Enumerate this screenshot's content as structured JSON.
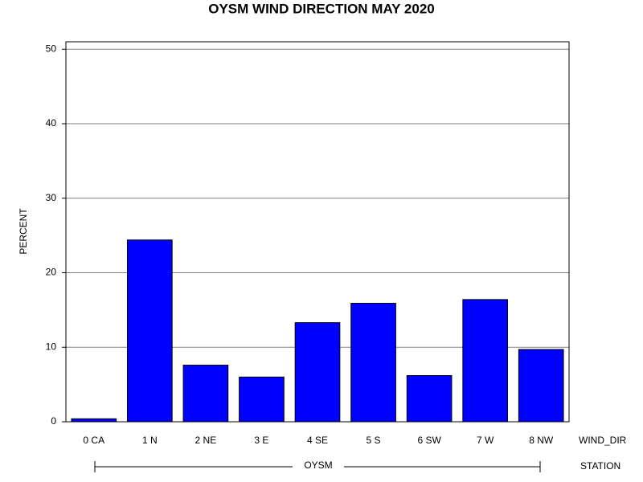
{
  "chart_data": {
    "type": "bar",
    "title": "OYSM WIND DIRECTION MAY 2020",
    "y_label": "PERCENT",
    "x_label": "WIND_DIR",
    "group_label": "STATION",
    "group": "OYSM",
    "categories": [
      "0 CA",
      "1 N",
      "2 NE",
      "3 E",
      "4 SE",
      "5 S",
      "6 SW",
      "7 W",
      "8 NW"
    ],
    "values": [
      0.4,
      24.4,
      7.6,
      6.0,
      13.3,
      15.9,
      6.2,
      16.4,
      9.7
    ],
    "color": "#0000ff",
    "ylim": [
      0,
      51
    ],
    "yticks": [
      0,
      10,
      20,
      30,
      40,
      50
    ],
    "grid": true
  }
}
